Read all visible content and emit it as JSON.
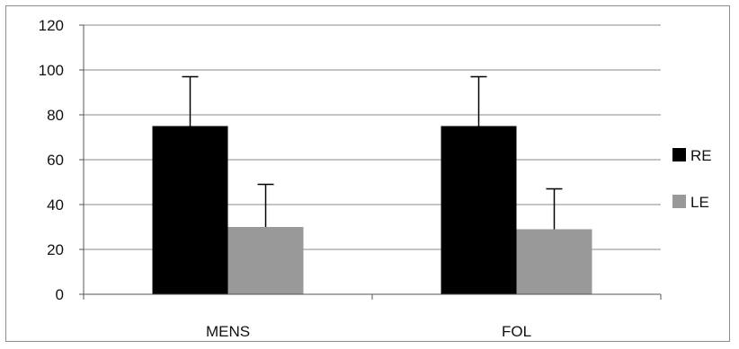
{
  "chart_data": {
    "type": "bar",
    "categories": [
      "MENS",
      "FOL"
    ],
    "series": [
      {
        "name": "RE",
        "values": [
          75,
          75
        ],
        "errors": [
          22,
          22
        ],
        "color": "#000000"
      },
      {
        "name": "LE",
        "values": [
          30,
          29
        ],
        "errors": [
          19,
          18
        ],
        "color": "#999999"
      }
    ],
    "ylim": [
      0,
      120
    ],
    "yticks": [
      "0",
      "20",
      "40",
      "60",
      "80",
      "100",
      "120"
    ],
    "grid": true,
    "legend": "right",
    "title": "",
    "xlabel": "",
    "ylabel": ""
  }
}
